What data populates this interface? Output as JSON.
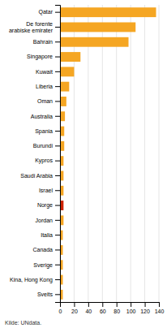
{
  "chart_data": {
    "type": "bar",
    "orientation": "horizontal",
    "categories": [
      "Qatar",
      "De forente\narabiske emirater",
      "Bahrain",
      "Singapore",
      "Kuwait",
      "Liberia",
      "Oman",
      "Australia",
      "Spania",
      "Burundi",
      "Kypros",
      "Saudi Arabia",
      "Israel",
      "Norge",
      "Jordan",
      "Italia",
      "Canada",
      "Sverige",
      "Kina, Hong Kong",
      "Sveits"
    ],
    "values": [
      136,
      107,
      97,
      29,
      20,
      13,
      9,
      7,
      6,
      6,
      5,
      5,
      5,
      5,
      5,
      4,
      4,
      4,
      4,
      4
    ],
    "colors": [
      "#f5a623",
      "#f5a623",
      "#f5a623",
      "#f5a623",
      "#f5a623",
      "#f5a623",
      "#f5a623",
      "#f5a623",
      "#f5a623",
      "#f5a623",
      "#f5a623",
      "#f5a623",
      "#f5a623",
      "#cc2200",
      "#f5a623",
      "#f5a623",
      "#f5a623",
      "#f5a623",
      "#f5a623",
      "#f5a623"
    ],
    "xlim": [
      0,
      140
    ],
    "xticks": [
      0,
      20,
      40,
      60,
      80,
      100,
      120,
      140
    ],
    "grid": true,
    "source": "Kilde: UNdata."
  }
}
